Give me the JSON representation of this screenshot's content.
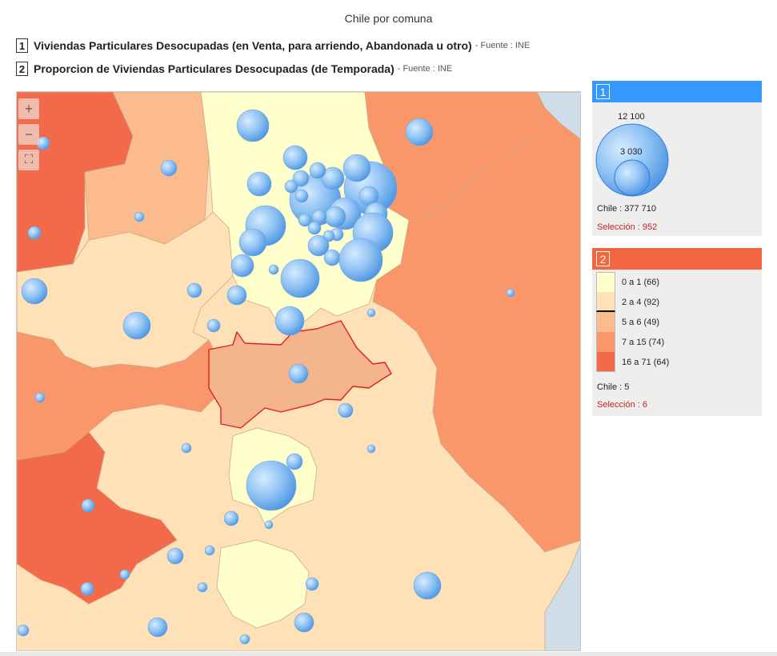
{
  "title": "Chile por comuna",
  "indicators": [
    {
      "num": "1",
      "name": "Viviendas Particulares Desocupadas (en Venta, para arriendo, Abandonada u otro)",
      "source": "- Fuente : INE"
    },
    {
      "num": "2",
      "name": "Proporcion de Viviendas Particulares Desocupadas (de Temporada)",
      "source": "- Fuente : INE"
    }
  ],
  "map_controls": {
    "zoom_in": "+",
    "zoom_out": "−",
    "fullscreen": "⛶"
  },
  "legend1": {
    "num": "1",
    "header_color": "#3399ff",
    "bubble_max_label": "12 100",
    "bubble_min_label": "3 030",
    "total": "Chile : 377 710",
    "selection": "Selección : 952"
  },
  "legend2": {
    "num": "2",
    "header_color": "#f26640",
    "classes": [
      {
        "label": "0 a 1 (66)",
        "color": "#ffffcc"
      },
      {
        "label": "2 a 4 (92)",
        "color": "#ffe1b8"
      },
      {
        "label": "5 a 6 (49)",
        "color": "#fcbb8c"
      },
      {
        "label": "7 a 15 (74)",
        "color": "#f9976a"
      },
      {
        "label": "16 a 71 (64)",
        "color": "#f26a4a"
      }
    ],
    "total": "Chile : 5",
    "selection": "Selección : 6"
  }
}
